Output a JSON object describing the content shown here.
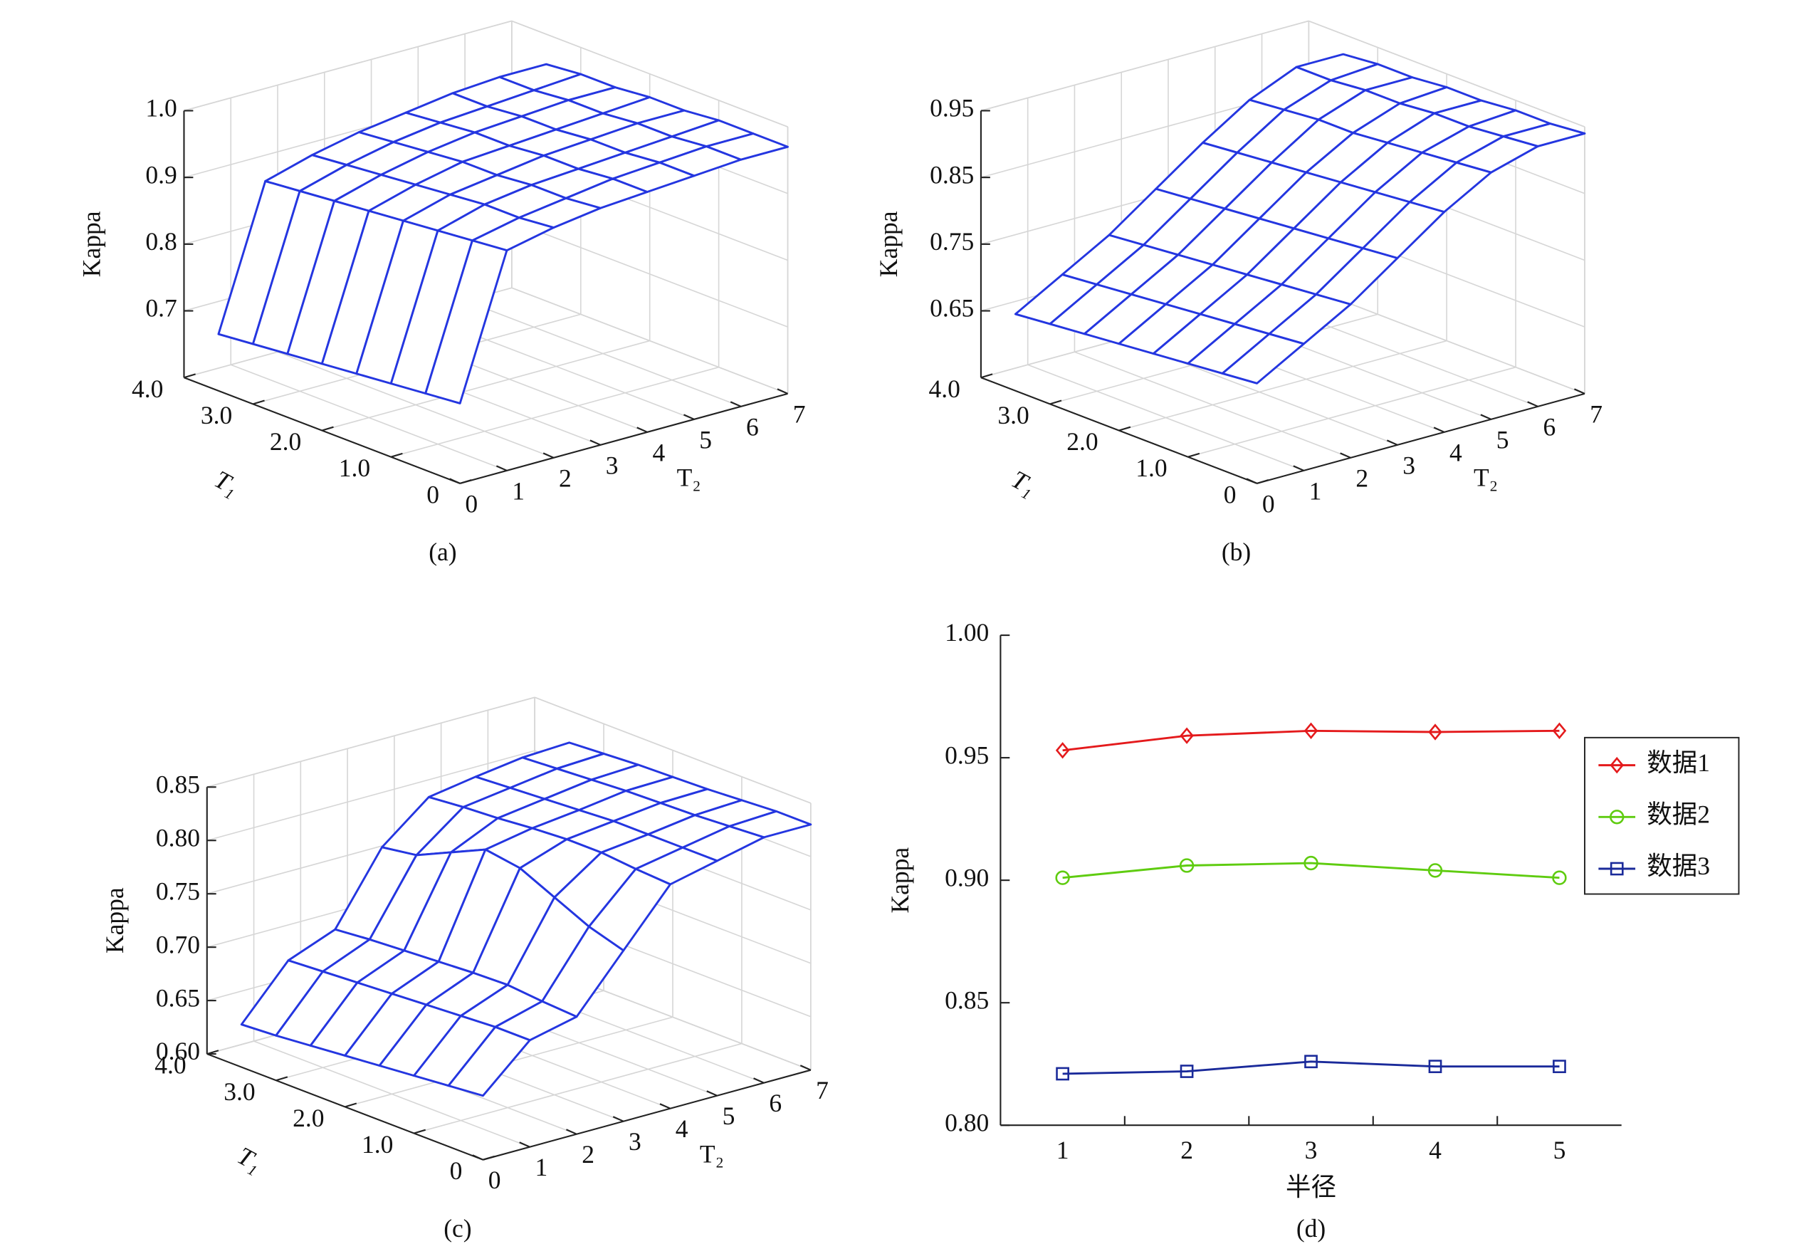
{
  "chart_data": [
    {
      "type": "surface",
      "caption": "(a)",
      "zlabel": "Kappa",
      "t1label": "T₁",
      "t2label": "T₂",
      "color": "#2436e0",
      "t1": [
        0,
        0.5,
        1,
        1.5,
        2,
        2.5,
        3,
        3.5
      ],
      "t2": [
        0,
        1,
        2,
        3,
        4,
        5,
        6,
        7
      ],
      "z": [
        [
          0.72,
          0.93,
          0.945,
          0.955,
          0.96,
          0.965,
          0.97,
          0.97
        ],
        [
          0.715,
          0.925,
          0.94,
          0.95,
          0.96,
          0.965,
          0.97,
          0.97
        ],
        [
          0.71,
          0.92,
          0.94,
          0.95,
          0.955,
          0.96,
          0.965,
          0.97
        ],
        [
          0.705,
          0.915,
          0.935,
          0.945,
          0.955,
          0.96,
          0.965,
          0.965
        ],
        [
          0.7,
          0.91,
          0.93,
          0.945,
          0.95,
          0.955,
          0.96,
          0.965
        ],
        [
          0.695,
          0.905,
          0.925,
          0.94,
          0.95,
          0.955,
          0.96,
          0.96
        ],
        [
          0.69,
          0.9,
          0.92,
          0.935,
          0.945,
          0.95,
          0.955,
          0.96
        ],
        [
          0.685,
          0.895,
          0.915,
          0.93,
          0.94,
          0.95,
          0.955,
          0.955
        ]
      ],
      "zlim": [
        0.6,
        1.0
      ],
      "zticks": [
        0.7,
        0.8,
        0.9,
        {
          "value": 1.0,
          "label": "1.0"
        }
      ],
      "t1lim": [
        0,
        4
      ],
      "t1ticks": [
        0,
        {
          "value": 1,
          "label": "1.0"
        },
        {
          "value": 2,
          "label": "2.0"
        },
        {
          "value": 3,
          "label": "3.0"
        },
        {
          "value": 4,
          "label": "4.0"
        }
      ],
      "t2lim": [
        0,
        7
      ],
      "t2ticks": [
        0,
        1,
        2,
        3,
        4,
        5,
        6,
        7
      ]
    },
    {
      "type": "surface",
      "caption": "(b)",
      "zlabel": "Kappa",
      "t1label": "T₁",
      "t2label": "T₂",
      "color": "#2436e0",
      "t1": [
        0,
        0.5,
        1,
        1.5,
        2,
        2.5,
        3,
        3.5
      ],
      "t2": [
        0,
        1,
        2,
        3,
        4,
        5,
        6,
        7
      ],
      "z": [
        [
          0.7,
          0.74,
          0.78,
          0.83,
          0.88,
          0.92,
          0.94,
          0.94
        ],
        [
          0.695,
          0.735,
          0.775,
          0.825,
          0.875,
          0.915,
          0.935,
          0.935
        ],
        [
          0.69,
          0.73,
          0.77,
          0.82,
          0.87,
          0.91,
          0.93,
          0.935
        ],
        [
          0.685,
          0.725,
          0.765,
          0.815,
          0.865,
          0.905,
          0.93,
          0.93
        ],
        [
          0.68,
          0.72,
          0.76,
          0.81,
          0.86,
          0.9,
          0.925,
          0.93
        ],
        [
          0.675,
          0.715,
          0.755,
          0.805,
          0.855,
          0.9,
          0.925,
          0.925
        ],
        [
          0.67,
          0.71,
          0.75,
          0.8,
          0.85,
          0.895,
          0.92,
          0.925
        ],
        [
          0.665,
          0.705,
          0.745,
          0.795,
          0.845,
          0.89,
          0.92,
          0.92
        ]
      ],
      "zlim": [
        0.55,
        0.95
      ],
      "zticks": [
        0.65,
        0.75,
        0.85,
        0.95
      ],
      "t1lim": [
        0,
        4
      ],
      "t1ticks": [
        0,
        {
          "value": 1,
          "label": "1.0"
        },
        {
          "value": 2,
          "label": "2.0"
        },
        {
          "value": 3,
          "label": "3.0"
        },
        {
          "value": 4,
          "label": "4.0"
        }
      ],
      "t2lim": [
        0,
        7
      ],
      "t2ticks": [
        0,
        1,
        2,
        3,
        4,
        5,
        6,
        7
      ]
    },
    {
      "type": "surface",
      "caption": "(c)",
      "zlabel": "Kappa",
      "t1label": "T₁",
      "t2label": "T₂",
      "color": "#2436e0",
      "t1": [
        0,
        0.5,
        1,
        1.5,
        2,
        2.5,
        3,
        3.5
      ],
      "t2": [
        0,
        1,
        2,
        3,
        4,
        5,
        6,
        7
      ],
      "z": [
        [
          0.66,
          0.7,
          0.71,
          0.76,
          0.81,
          0.82,
          0.83,
          0.83
        ],
        [
          0.657,
          0.7,
          0.712,
          0.77,
          0.812,
          0.82,
          0.828,
          0.83
        ],
        [
          0.654,
          0.698,
          0.715,
          0.785,
          0.815,
          0.82,
          0.826,
          0.828
        ],
        [
          0.651,
          0.696,
          0.714,
          0.8,
          0.815,
          0.82,
          0.825,
          0.826
        ],
        [
          0.648,
          0.694,
          0.712,
          0.805,
          0.813,
          0.818,
          0.824,
          0.825
        ],
        [
          0.645,
          0.692,
          0.71,
          0.79,
          0.81,
          0.816,
          0.822,
          0.824
        ],
        [
          0.642,
          0.69,
          0.708,
          0.775,
          0.808,
          0.814,
          0.82,
          0.822
        ],
        [
          0.64,
          0.688,
          0.705,
          0.77,
          0.805,
          0.812,
          0.818,
          0.82
        ]
      ],
      "zlim": [
        0.6,
        0.85
      ],
      "zticks": [
        {
          "value": 0.6,
          "label": "0.60"
        },
        0.65,
        {
          "value": 0.7,
          "label": "0.70"
        },
        0.75,
        {
          "value": 0.8,
          "label": "0.80"
        },
        0.85
      ],
      "t1lim": [
        0,
        4
      ],
      "t1ticks": [
        0,
        {
          "value": 1,
          "label": "1.0"
        },
        {
          "value": 2,
          "label": "2.0"
        },
        {
          "value": 3,
          "label": "3.0"
        },
        {
          "value": 4,
          "label": "4.0"
        }
      ],
      "t2lim": [
        0,
        7
      ],
      "t2ticks": [
        0,
        1,
        2,
        3,
        4,
        5,
        6,
        7
      ]
    },
    {
      "type": "line",
      "caption": "(d)",
      "ylabel": "Kappa",
      "xlabel": "半径",
      "legend": "right",
      "categories": [
        "1",
        "2",
        "3",
        "4",
        "5"
      ],
      "series": [
        {
          "name": "数据1",
          "color": "#e41a1c",
          "marker": "diamond",
          "values": [
            0.953,
            0.959,
            0.961,
            0.9605,
            0.961
          ]
        },
        {
          "name": "数据2",
          "color": "#5fcc10",
          "marker": "circle",
          "values": [
            0.901,
            0.906,
            0.907,
            0.904,
            0.901
          ]
        },
        {
          "name": "数据3",
          "color": "#1a2a9a",
          "marker": "square",
          "values": [
            0.821,
            0.822,
            0.826,
            0.824,
            0.824
          ]
        }
      ],
      "ylim": [
        0.8,
        1.0
      ],
      "yticks": [
        {
          "value": 0.8,
          "label": "0.80"
        },
        0.85,
        {
          "value": 0.9,
          "label": "0.90"
        },
        0.95,
        {
          "value": 1.0,
          "label": "1.00"
        }
      ]
    }
  ]
}
